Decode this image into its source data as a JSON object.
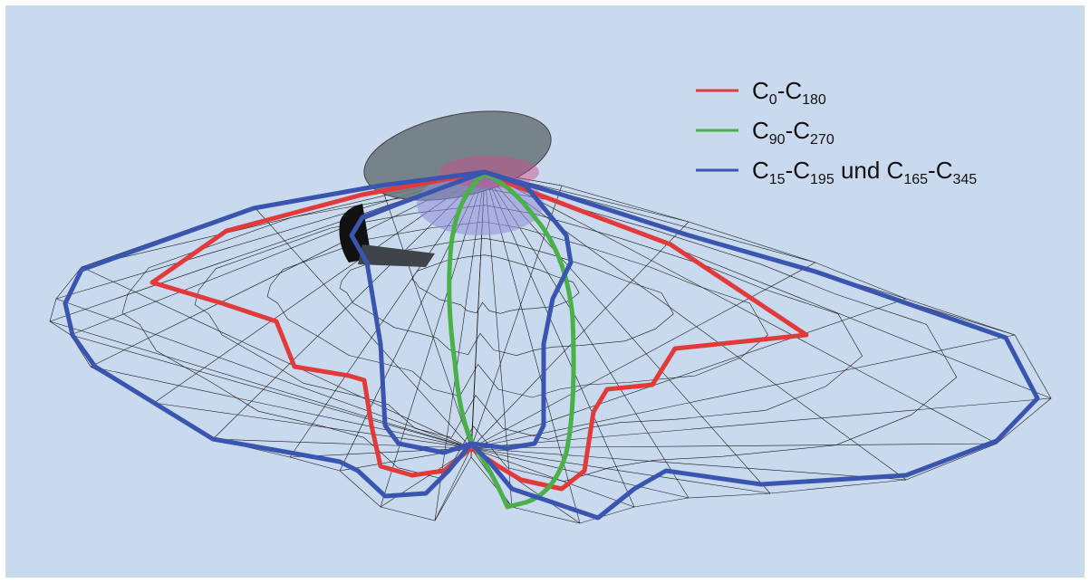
{
  "legend": {
    "items": [
      {
        "color": "#e03a3a",
        "parts": [
          {
            "text": "C"
          },
          {
            "sub": "0"
          },
          {
            "text": "-C"
          },
          {
            "sub": "180"
          }
        ]
      },
      {
        "color": "#4ab04a",
        "parts": [
          {
            "text": "C"
          },
          {
            "sub": "90"
          },
          {
            "text": "-C"
          },
          {
            "sub": "270"
          }
        ]
      },
      {
        "color": "#3a55b0",
        "parts": [
          {
            "text": "C"
          },
          {
            "sub": "15"
          },
          {
            "text": "-C"
          },
          {
            "sub": "195"
          },
          {
            "text": " und C"
          },
          {
            "sub": "165"
          },
          {
            "text": "-C"
          },
          {
            "sub": "345"
          }
        ]
      }
    ]
  }
}
